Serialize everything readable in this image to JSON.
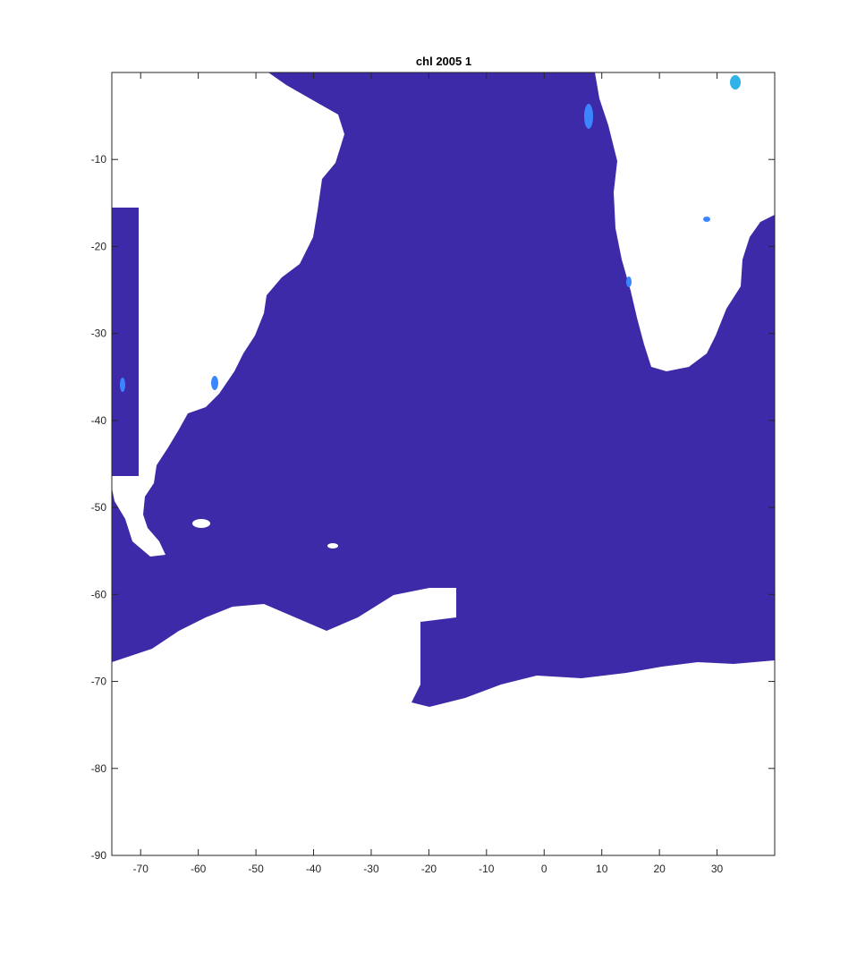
{
  "chart_data": {
    "type": "heatmap",
    "title": "chl 2005 1",
    "xlabel": "",
    "ylabel": "",
    "xlim": [
      -75,
      40
    ],
    "ylim": [
      -90,
      0
    ],
    "xticks": [
      -70,
      -60,
      -50,
      -40,
      -30,
      -20,
      -10,
      0,
      10,
      20,
      30
    ],
    "yticks": [
      -10,
      -20,
      -30,
      -40,
      -50,
      -60,
      -70,
      -80,
      -90
    ],
    "xtick_labels": [
      "-70",
      "-60",
      "-50",
      "-40",
      "-30",
      "-20",
      "-10",
      "0",
      "10",
      "20",
      "30"
    ],
    "ytick_labels": [
      "-10",
      "-20",
      "-30",
      "-40",
      "-50",
      "-60",
      "-70",
      "-80",
      "-90"
    ],
    "colors": {
      "ocean_low_chl": "#3d2aa8",
      "elevated_chl": "#3b86ff",
      "high_chl": "#2fb3e8",
      "land_or_nodata": "#ffffff"
    }
  }
}
